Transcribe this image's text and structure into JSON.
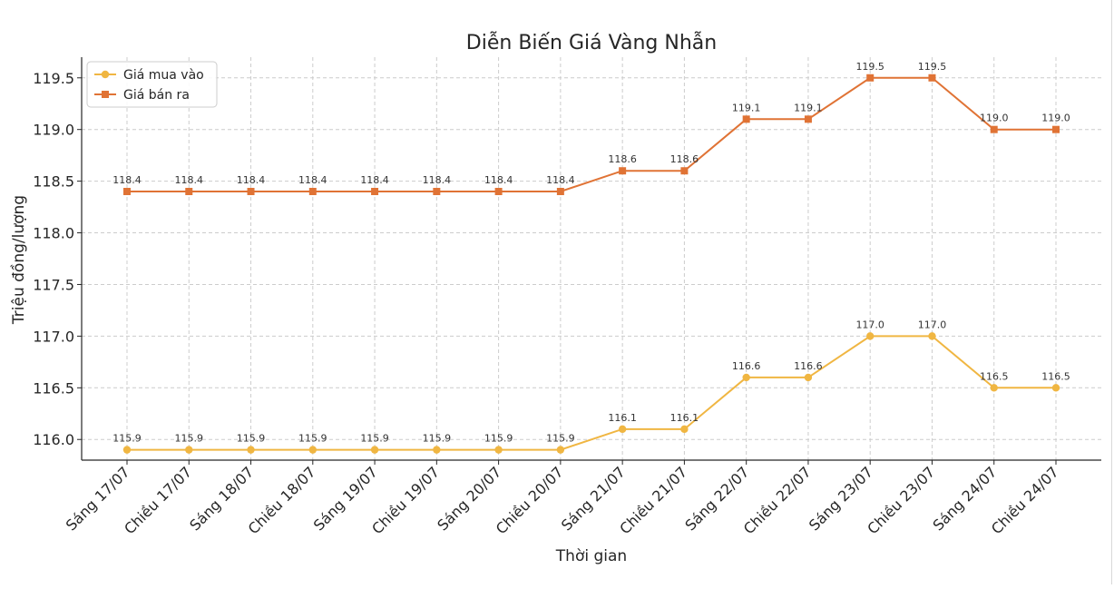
{
  "chart_data": {
    "type": "line",
    "title": "Diễn Biến Giá Vàng Nhẫn",
    "xlabel": "Thời gian",
    "ylabel": "Triệu đồng/lượng",
    "categories": [
      "Sáng 17/07",
      "Chiều 17/07",
      "Sáng 18/07",
      "Chiều 18/07",
      "Sáng 19/07",
      "Chiều 19/07",
      "Sáng 20/07",
      "Chiều 20/07",
      "Sáng 21/07",
      "Chiều 21/07",
      "Sáng 22/07",
      "Chiều 22/07",
      "Sáng 23/07",
      "Chiều 23/07",
      "Sáng 24/07",
      "Chiều 24/07"
    ],
    "ylim": [
      115.8,
      119.7
    ],
    "yticks": [
      "116.0",
      "116.5",
      "117.0",
      "117.5",
      "118.0",
      "118.5",
      "119.0",
      "119.5"
    ],
    "grid": true,
    "legend_position": "top-left",
    "series": [
      {
        "name": "Giá mua vào",
        "color": "#f0b642",
        "marker": "circle",
        "values": [
          115.9,
          115.9,
          115.9,
          115.9,
          115.9,
          115.9,
          115.9,
          115.9,
          116.1,
          116.1,
          116.6,
          116.6,
          117.0,
          117.0,
          116.5,
          116.5
        ],
        "labels": [
          "115.9",
          "115.9",
          "115.9",
          "115.9",
          "115.9",
          "115.9",
          "115.9",
          "115.9",
          "116.1",
          "116.1",
          "116.6",
          "116.6",
          "117.0",
          "117.0",
          "116.5",
          "116.5"
        ]
      },
      {
        "name": "Giá bán ra",
        "color": "#e07335",
        "marker": "square",
        "values": [
          118.4,
          118.4,
          118.4,
          118.4,
          118.4,
          118.4,
          118.4,
          118.4,
          118.6,
          118.6,
          119.1,
          119.1,
          119.5,
          119.5,
          119.0,
          119.0
        ],
        "labels": [
          "118.4",
          "118.4",
          "118.4",
          "118.4",
          "118.4",
          "118.4",
          "118.4",
          "118.4",
          "118.6",
          "118.6",
          "119.1",
          "119.1",
          "119.5",
          "119.5",
          "119.0",
          "119.0"
        ]
      }
    ]
  }
}
